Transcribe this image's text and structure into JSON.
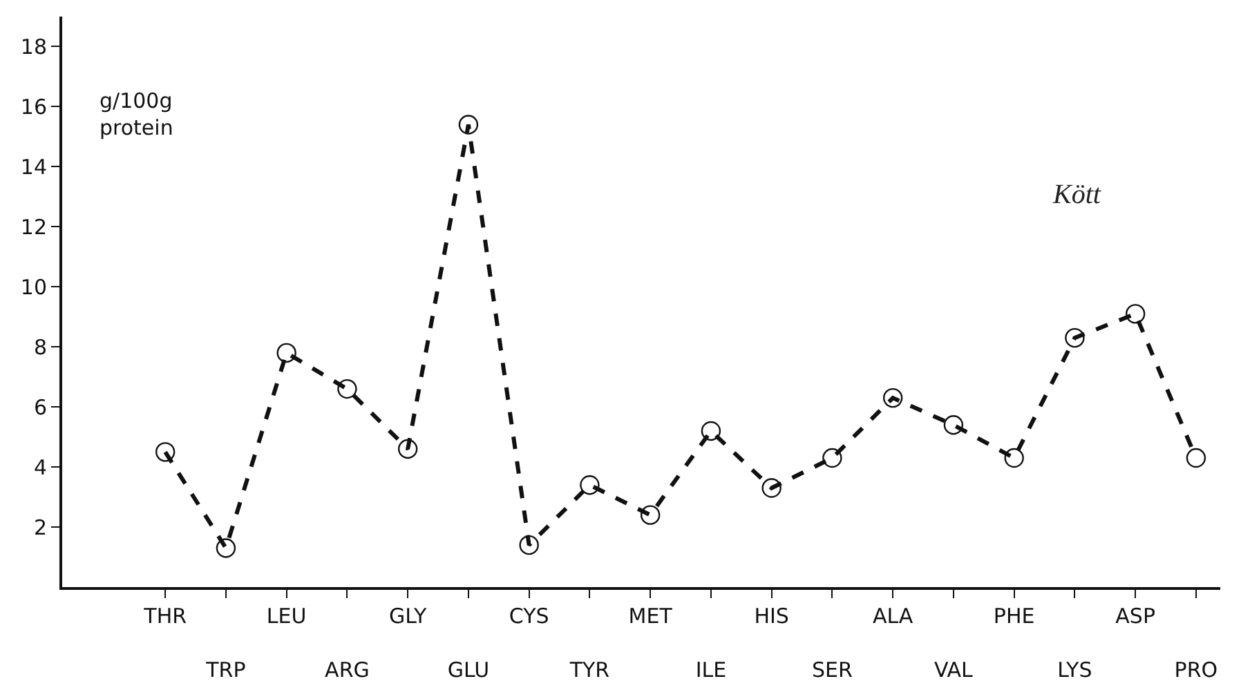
{
  "chart_data": {
    "type": "line",
    "categories": [
      "THR",
      "TRP",
      "LEU",
      "ARG",
      "GLY",
      "GLU",
      "CYS",
      "TYR",
      "MET",
      "ILE",
      "HIS",
      "SER",
      "ALA",
      "VAL",
      "PHE",
      "LYS",
      "ASP",
      "PRO"
    ],
    "series": [
      {
        "color": "#111111",
        "values": [
          4.5,
          1.3,
          7.8,
          6.6,
          4.6,
          15.4,
          1.4,
          3.4,
          2.4,
          5.2,
          3.3,
          4.3,
          6.3,
          5.4,
          4.3,
          8.3,
          9.1,
          4.3
        ]
      }
    ],
    "ylim": [
      0,
      19
    ],
    "yticks": [
      2,
      4,
      6,
      8,
      10,
      12,
      14,
      16,
      18
    ],
    "ylabel": "g/100g\nprotein",
    "annotations": [
      "Kött"
    ],
    "marker": "circle",
    "line_style": "dashed"
  }
}
